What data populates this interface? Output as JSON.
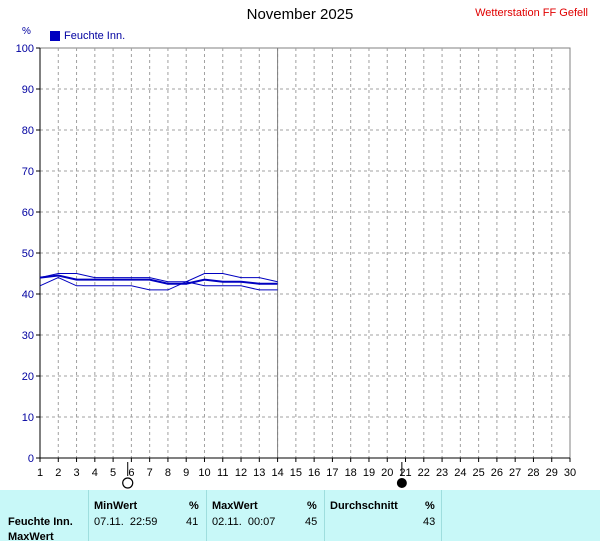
{
  "header": {
    "title": "November 2025",
    "station": "Wetterstation FF Gefell",
    "unit": "%"
  },
  "legend": {
    "label": "Feuchte Inn.",
    "color": "#0000c0"
  },
  "moon": {
    "full_moon_day": 5.8,
    "new_moon_day": 20.8
  },
  "chart_data": {
    "type": "line",
    "title": "November 2025",
    "ylabel": "%",
    "ylim": [
      0,
      100
    ],
    "yticks": [
      0,
      10,
      20,
      30,
      40,
      50,
      60,
      70,
      80,
      90,
      100
    ],
    "xlim": [
      1,
      30
    ],
    "xticks": [
      1,
      2,
      3,
      4,
      5,
      6,
      7,
      8,
      9,
      10,
      11,
      12,
      13,
      14,
      15,
      16,
      17,
      18,
      19,
      20,
      21,
      22,
      23,
      24,
      25,
      26,
      27,
      28,
      29,
      30
    ],
    "grid": true,
    "legend_position": "top-left",
    "series": [
      {
        "name": "Feuchte Inn.",
        "role": "max",
        "x": [
          1,
          2,
          3,
          4,
          5,
          6,
          7,
          8,
          9,
          10,
          11,
          12,
          13,
          14
        ],
        "values": [
          44,
          45,
          45,
          44,
          44,
          44,
          44,
          43,
          43,
          45,
          45,
          44,
          44,
          43
        ]
      },
      {
        "name": "Feuchte Inn.",
        "role": "avg",
        "x": [
          1,
          2,
          3,
          4,
          5,
          6,
          7,
          8,
          9,
          10,
          11,
          12,
          13,
          14
        ],
        "values": [
          44,
          44.5,
          43.5,
          43.5,
          43.5,
          43.5,
          43.5,
          42.5,
          42.5,
          43.5,
          43,
          43,
          42.5,
          42.5
        ]
      },
      {
        "name": "Feuchte Inn.",
        "role": "min",
        "x": [
          1,
          2,
          3,
          4,
          5,
          6,
          7,
          8,
          9,
          10,
          11,
          12,
          13,
          14
        ],
        "values": [
          42,
          44,
          42,
          42,
          42,
          42,
          41,
          41,
          43,
          42,
          42,
          42,
          41,
          41
        ]
      }
    ]
  },
  "footer": {
    "label": "Feuchte Inn.",
    "label2": "MaxWert",
    "min_header": "MinWert",
    "min_unit": "%",
    "min_time": "07.11.  22:59",
    "min_value": "41",
    "max_header": "MaxWert",
    "max_unit": "%",
    "max_time": "02.11.  00:07",
    "max_value": "45",
    "avg_header": "Durchschnitt",
    "avg_unit": "%",
    "avg_value": "43"
  }
}
